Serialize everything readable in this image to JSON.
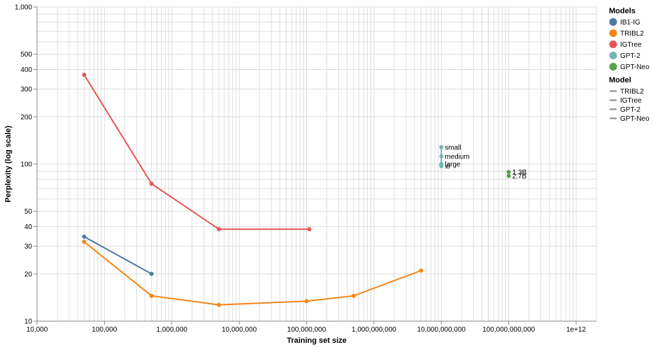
{
  "chart_data": {
    "type": "line",
    "xlabel": "Training set size",
    "ylabel": "Perplexity (log scale)",
    "x_scale": "log",
    "y_scale": "log",
    "xlim": [
      10000,
      2000000000000
    ],
    "ylim": [
      10,
      1000
    ],
    "grid": true,
    "x_ticks": [
      "10,000",
      "100,000",
      "1,000,000",
      "10,000,000",
      "100,000,000",
      "1,000,000,000",
      "10,000,000,000",
      "100,000,000,000",
      "1e+12"
    ],
    "y_ticks": [
      "10",
      "20",
      "30",
      "40",
      "50",
      "100",
      "200",
      "300",
      "400",
      "500",
      "1,000"
    ],
    "legend_position": "right",
    "legends": [
      {
        "title": "Models",
        "items": [
          {
            "label": "IB1-IG",
            "color": "#4c78a8"
          },
          {
            "label": "TRIBL2",
            "color": "#f58518"
          },
          {
            "label": "IGTree",
            "color": "#e45756"
          },
          {
            "label": "GPT-2",
            "color": "#72b7b2"
          },
          {
            "label": "GPT-Neo",
            "color": "#54a24b"
          }
        ]
      },
      {
        "title": "Model",
        "items": [
          {
            "label": "TRIBL2",
            "color": "#888888"
          },
          {
            "label": "IGTree",
            "color": "#888888"
          },
          {
            "label": "GPT-2",
            "color": "#888888"
          },
          {
            "label": "GPT-Neo",
            "color": "#888888"
          }
        ]
      }
    ],
    "series": [
      {
        "name": "IB1-IG",
        "color": "#4c78a8",
        "points": [
          [
            50000,
            34.5
          ],
          [
            500000,
            20
          ]
        ]
      },
      {
        "name": "TRIBL2",
        "color": "#f58518",
        "points": [
          [
            50000,
            32
          ],
          [
            500000,
            14.5
          ],
          [
            5000000,
            12.7
          ],
          [
            100000000,
            13.4
          ],
          [
            500000000,
            14.5
          ],
          [
            5000000000,
            21
          ]
        ]
      },
      {
        "name": "IGTree",
        "color": "#e45756",
        "points": [
          [
            50000,
            370
          ],
          [
            500000,
            75
          ],
          [
            5000000,
            38.5
          ],
          [
            110000000,
            38.5
          ]
        ]
      },
      {
        "name": "GPT-2",
        "color": "#72b7b2",
        "points": [
          [
            10000000000,
            128
          ],
          [
            10000000000,
            112
          ],
          [
            10000000000,
            100
          ],
          [
            10000000000,
            97
          ]
        ],
        "labels": [
          "small",
          "medium",
          "large",
          "xl"
        ]
      },
      {
        "name": "GPT-Neo",
        "color": "#54a24b",
        "points": [
          [
            100000000000,
            89
          ],
          [
            100000000000,
            84
          ]
        ],
        "labels": [
          "1.3B",
          "2.7B"
        ]
      }
    ]
  }
}
